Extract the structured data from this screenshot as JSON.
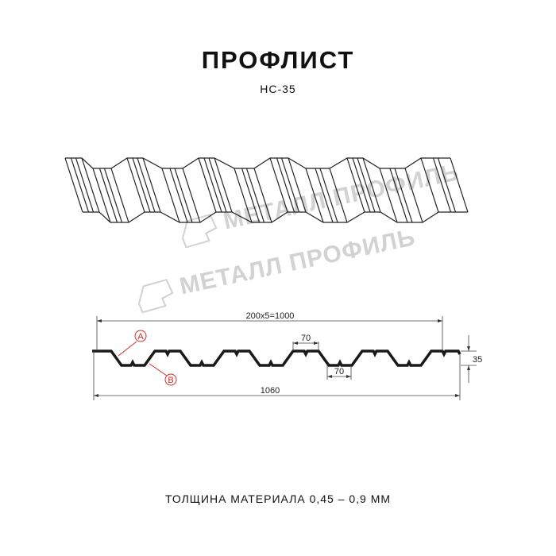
{
  "header": {
    "title": "ПРОФЛИСТ",
    "subtitle": "НС-35"
  },
  "watermark": "МЕТАЛЛ ПРОФИЛЬ",
  "dimensions": {
    "pitch": "200x5=1000",
    "crest_width": "70",
    "trough_width": "70",
    "height": "35",
    "total_width": "1060"
  },
  "markers": {
    "a": "A",
    "b": "B"
  },
  "footer": {
    "thickness": "ТОЛЩИНА МАТЕРИАЛА 0,45 – 0,9 ММ"
  },
  "colors": {
    "line": "#1a1a1a",
    "marker": "#d42a2a",
    "watermark": "#d2d2d2"
  }
}
